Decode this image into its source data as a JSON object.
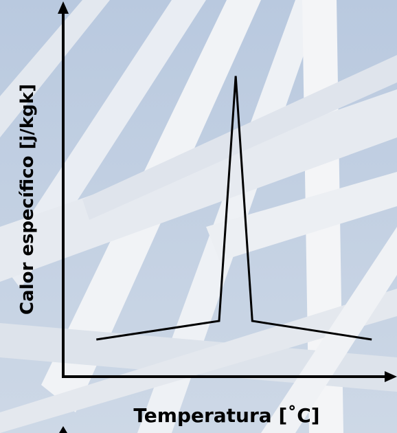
{
  "chart_data": {
    "type": "line",
    "x_label": "Temperatura [˚C]",
    "y_label": "Calor específico [j/kgk]",
    "x": [
      10,
      47,
      52,
      57,
      93
    ],
    "values": [
      10,
      15,
      81,
      15,
      10
    ],
    "xlim": [
      0,
      100
    ],
    "ylim": [
      0,
      100
    ],
    "color": "#000000"
  }
}
